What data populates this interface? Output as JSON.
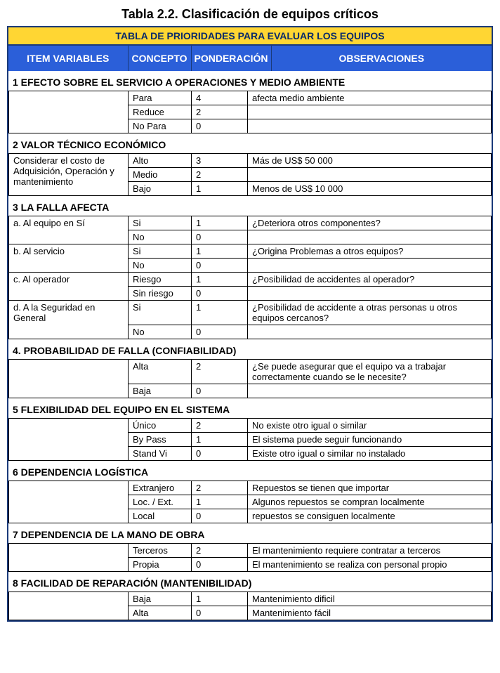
{
  "title": "Tabla 2.2.  Clasificación de equipos críticos",
  "banner": "TABLA DE PRIORIDADES PARA EVALUAR LOS EQUIPOS",
  "headers": {
    "item": "ITEM VARIABLES",
    "concepto": "CONCEPTO",
    "ponder": "PONDERACIÓN",
    "obs": "OBSERVACIONES"
  },
  "col_widths": {
    "var": 170,
    "con": 90,
    "pon": 80
  },
  "colors": {
    "blue_header_bg": "#2b5fd9",
    "blue_header_text": "#ffffff",
    "yellow_bg": "#ffd633",
    "yellow_text": "#0a2a6a",
    "border": "#1a3a7a"
  },
  "sections": [
    {
      "heading": "1 EFECTO SOBRE EL SERVICIO A OPERACIONES Y MEDIO AMBIENTE",
      "var_label": "",
      "rows": [
        {
          "concepto": "Para",
          "ponder": "4",
          "obs": "afecta medio ambiente"
        },
        {
          "concepto": "Reduce",
          "ponder": "2",
          "obs": ""
        },
        {
          "concepto": "No Para",
          "ponder": "0",
          "obs": ""
        }
      ]
    },
    {
      "heading": "2 VALOR TÉCNICO ECONÓMICO",
      "var_label": "Considerar el costo de Adquisición, Operación y mantenimiento",
      "rows": [
        {
          "concepto": "Alto",
          "ponder": "3",
          "obs": "Más de US$ 50 000"
        },
        {
          "concepto": "Medio",
          "ponder": "2",
          "obs": ""
        },
        {
          "concepto": "Bajo",
          "ponder": "1",
          "obs": "Menos de US$ 10 000"
        }
      ]
    },
    {
      "heading": "3 LA FALLA AFECTA",
      "groups": [
        {
          "var": "a. Al equipo en Sí",
          "rows": [
            {
              "concepto": "Si",
              "ponder": "1",
              "obs": "¿Deteriora otros componentes?"
            },
            {
              "concepto": "No",
              "ponder": "0",
              "obs": ""
            }
          ]
        },
        {
          "var": "b. Al servicio",
          "rows": [
            {
              "concepto": "Si",
              "ponder": "1",
              "obs": "¿Origina Problemas a otros equipos?"
            },
            {
              "concepto": "No",
              "ponder": "0",
              "obs": ""
            }
          ]
        },
        {
          "var": "c. Al operador",
          "rows": [
            {
              "concepto": "Riesgo",
              "ponder": "1",
              "obs": "¿Posibilidad de accidentes al operador?"
            },
            {
              "concepto": "Sin riesgo",
              "ponder": "0",
              "obs": ""
            }
          ]
        },
        {
          "var": "d. A la Seguridad en General",
          "rows": [
            {
              "concepto": "Si",
              "ponder": "1",
              "obs": "¿Posibilidad de accidente a otras personas u otros equipos cercanos?"
            },
            {
              "concepto": "No",
              "ponder": "0",
              "obs": ""
            }
          ]
        }
      ]
    },
    {
      "heading": "4. PROBABILIDAD DE FALLA (CONFIABILIDAD)",
      "var_label": "",
      "rows": [
        {
          "concepto": "Alta",
          "ponder": "2",
          "obs": "¿Se puede asegurar que el equipo va a trabajar correctamente cuando se le necesite?"
        },
        {
          "concepto": "Baja",
          "ponder": "0",
          "obs": ""
        }
      ]
    },
    {
      "heading": "5 FLEXIBILIDAD DEL EQUIPO EN EL SISTEMA",
      "var_label": "",
      "rows": [
        {
          "concepto": "Único",
          "ponder": "2",
          "obs": "No existe otro igual o similar"
        },
        {
          "concepto": "By Pass",
          "ponder": "1",
          "obs": "El sistema puede seguir funcionando"
        },
        {
          "concepto": "Stand Vi",
          "ponder": "0",
          "obs": "Existe otro igual o similar no instalado"
        }
      ]
    },
    {
      "heading": "6 DEPENDENCIA LOGÍSTICA",
      "var_label": "",
      "rows": [
        {
          "concepto": "Extranjero",
          "ponder": "2",
          "obs": "Repuestos se tienen que importar"
        },
        {
          "concepto": "Loc. / Ext.",
          "ponder": "1",
          "obs": "Algunos repuestos se compran localmente"
        },
        {
          "concepto": "Local",
          "ponder": "0",
          "obs": "repuestos se consiguen localmente"
        }
      ]
    },
    {
      "heading": "7 DEPENDENCIA DE LA MANO DE OBRA",
      "var_label": "",
      "rows": [
        {
          "concepto": "Terceros",
          "ponder": "2",
          "obs": "El mantenimiento requiere contratar a terceros"
        },
        {
          "concepto": "Propia",
          "ponder": "0",
          "obs": "El mantenimiento se realiza con personal propio"
        }
      ]
    },
    {
      "heading": "8 FACILIDAD DE REPARACIÓN (MANTENIBILIDAD)",
      "var_label": "",
      "rows": [
        {
          "concepto": "Baja",
          "ponder": "1",
          "obs": "Mantenimiento dificil"
        },
        {
          "concepto": "Alta",
          "ponder": "0",
          "obs": "Mantenimiento fácil"
        }
      ]
    }
  ]
}
